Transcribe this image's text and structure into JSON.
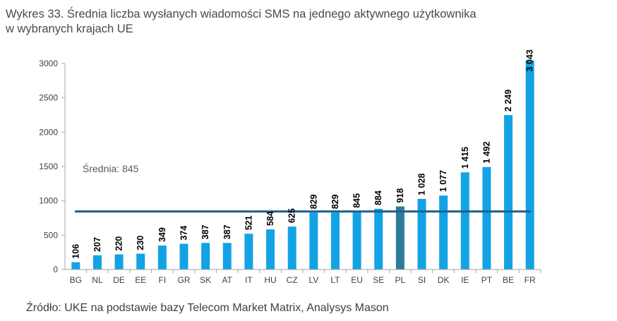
{
  "title_line1": "Wykres 33. Średnia liczba wysłanych wiadomości SMS na jednego aktywnego użytkownika",
  "title_line2": "w wybranych krajach UE",
  "source": "Źródło: UKE na podstawie bazy Telecom Market Matrix, Analysys Mason",
  "colors": {
    "bar": "#12a3e4",
    "highlight": "#2e7a9a",
    "average_line": "#1f5e8c"
  },
  "chart_data": {
    "type": "bar",
    "categories": [
      "BG",
      "NL",
      "DE",
      "EE",
      "FI",
      "GR",
      "SK",
      "AT",
      "IT",
      "HU",
      "CZ",
      "LV",
      "LT",
      "EU",
      "SE",
      "PL",
      "SI",
      "DK",
      "IE",
      "PT",
      "BE",
      "FR"
    ],
    "values": [
      106,
      207,
      220,
      230,
      349,
      374,
      387,
      387,
      521,
      584,
      625,
      829,
      829,
      845,
      884,
      918,
      1028,
      1077,
      1415,
      1492,
      2249,
      3043
    ],
    "value_labels": [
      "106",
      "207",
      "220",
      "230",
      "349",
      "374",
      "387",
      "387",
      "521",
      "584",
      "625",
      "829",
      "829",
      "845",
      "884",
      "918",
      "1 028",
      "1 077",
      "1 415",
      "1 492",
      "2 249",
      "3 043"
    ],
    "highlight_category": "PL",
    "ylim": [
      0,
      3000
    ],
    "yticks": [
      0,
      500,
      1000,
      1500,
      2000,
      2500,
      3000
    ],
    "average": {
      "value": 845,
      "label": "Średnia: 845"
    },
    "grid": false,
    "legend": "none"
  }
}
